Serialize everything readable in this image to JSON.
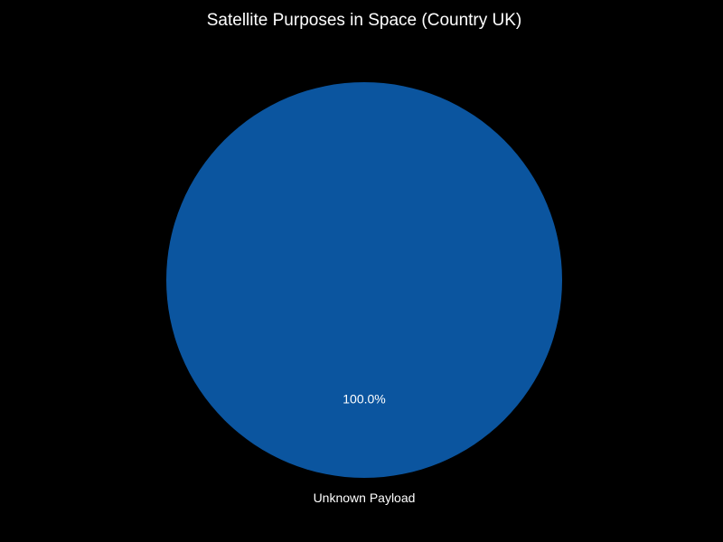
{
  "chart_data": {
    "type": "pie",
    "title": "Satellite Purposes in Space (Country UK)",
    "categories": [
      "Unknown Payload"
    ],
    "values": [
      100.0
    ],
    "value_labels": [
      "100.0%"
    ],
    "colors": [
      "#0b559f"
    ],
    "background": "#000000",
    "text_color": "#ffffff",
    "start_angle_deg": 90,
    "legend": "none"
  }
}
